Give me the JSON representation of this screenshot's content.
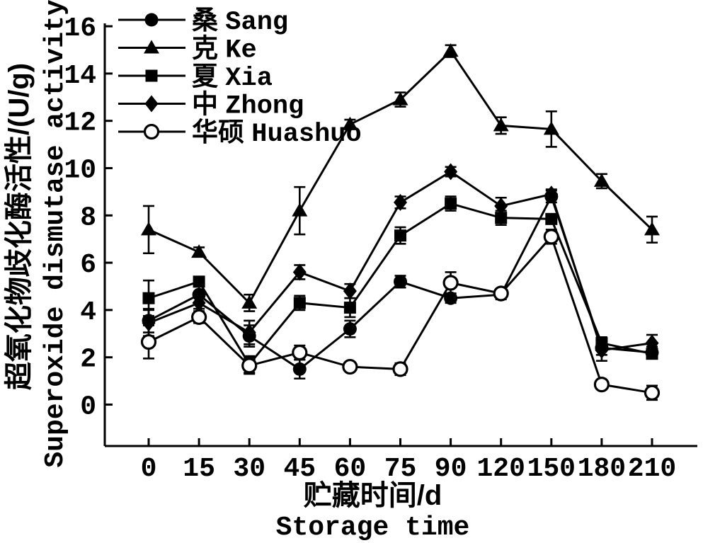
{
  "figure": {
    "background_color": "#ffffff",
    "line_color": "#000000"
  },
  "chart_data": {
    "type": "line",
    "title": "",
    "xlabel_cn": "贮藏时间/d",
    "xlabel_en": "Storage time",
    "ylabel_cn": "超氧化物歧化酶活性/(U/g)",
    "ylabel_en": "Superoxide dismutase activity",
    "x_tick_labels": [
      "0",
      "15",
      "30",
      "45",
      "60",
      "75",
      "90",
      "120",
      "150",
      "180",
      "210"
    ],
    "y_tick_labels": [
      "0",
      "2",
      "4",
      "6",
      "8",
      "10",
      "12",
      "14",
      "16"
    ],
    "yticks": [
      0,
      2,
      4,
      6,
      8,
      10,
      12,
      14,
      16
    ],
    "ylim": [
      0,
      16
    ],
    "grid": false,
    "legend_position": "top-left-inside",
    "error_bars": true,
    "series": [
      {
        "name_cn": "桑",
        "name_en": "Sang",
        "legend_label": "桑 Sang",
        "marker": "filled-circle",
        "values": [
          3.55,
          4.65,
          2.9,
          1.5,
          3.2,
          5.2,
          4.5,
          4.65,
          8.8,
          2.4,
          2.2
        ],
        "errors": [
          0.5,
          0.35,
          0.45,
          0.4,
          0.35,
          0.25,
          0.2,
          0.2,
          0.25,
          0.3,
          0.25
        ]
      },
      {
        "name_cn": "克",
        "name_en": "Ke",
        "legend_label": "克 Ke",
        "marker": "filled-triangle",
        "values": [
          7.4,
          6.45,
          4.3,
          8.2,
          11.85,
          12.9,
          14.95,
          11.8,
          11.65,
          9.45,
          7.4
        ],
        "errors": [
          1.0,
          0.2,
          0.35,
          1.0,
          0.2,
          0.3,
          0.25,
          0.35,
          0.75,
          0.3,
          0.55
        ]
      },
      {
        "name_cn": "夏",
        "name_en": "Xia",
        "legend_label": "夏 Xia",
        "marker": "filled-square",
        "values": [
          4.5,
          5.2,
          1.7,
          4.3,
          4.1,
          7.15,
          8.5,
          7.9,
          7.85,
          2.6,
          2.15
        ],
        "errors": [
          0.75,
          0.2,
          0.35,
          0.3,
          0.4,
          0.35,
          0.3,
          0.3,
          0.2,
          0.25,
          0.2
        ]
      },
      {
        "name_cn": "中",
        "name_en": "Zhong",
        "legend_label": "中 Zhong",
        "marker": "filled-diamond",
        "values": [
          3.45,
          4.3,
          3.05,
          5.6,
          4.8,
          8.55,
          9.85,
          8.4,
          8.9,
          2.3,
          2.6
        ],
        "errors": [
          0.55,
          0.25,
          0.5,
          0.3,
          0.3,
          0.25,
          0.2,
          0.35,
          0.2,
          0.45,
          0.35
        ]
      },
      {
        "name_cn": "华硕",
        "name_en": "Huashuo",
        "legend_label": "华硕 Huashuo",
        "marker": "open-circle",
        "values": [
          2.65,
          3.7,
          1.65,
          2.2,
          1.6,
          1.5,
          5.15,
          4.7,
          7.1,
          0.85,
          0.5
        ],
        "errors": [
          0.7,
          0.25,
          0.35,
          0.3,
          0.2,
          0.25,
          0.45,
          0.2,
          0.3,
          0.2,
          0.3
        ]
      }
    ]
  }
}
